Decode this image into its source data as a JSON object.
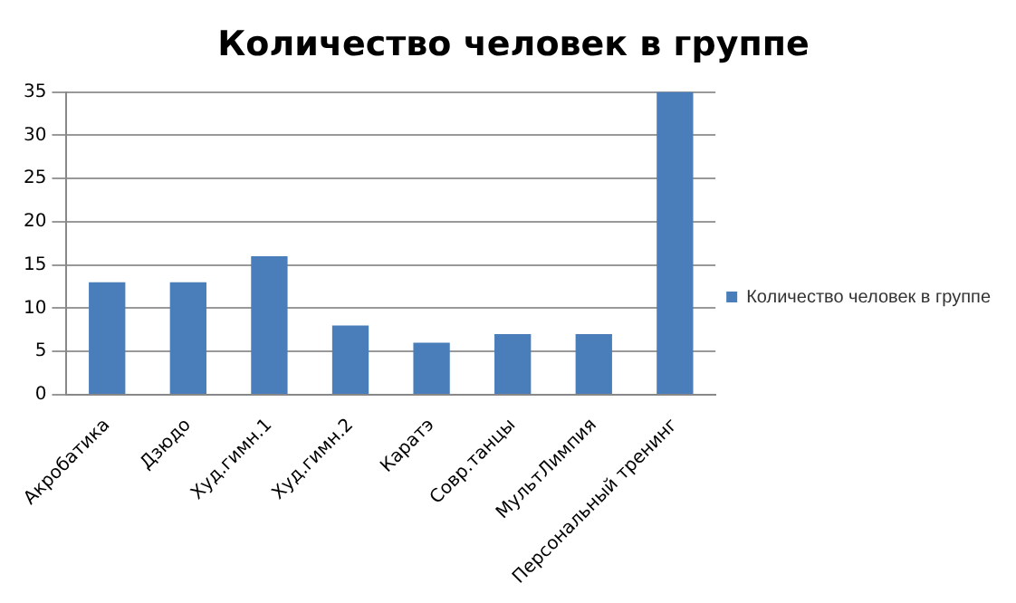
{
  "chart_data": {
    "type": "bar",
    "title": "Количество человек в группе",
    "categories": [
      "Акробатика",
      "Дзюдо",
      "Худ.гимн.1",
      "Худ.гимн.2",
      "Каратэ",
      "Совр.танцы",
      "МультЛимпия",
      "Персональный тренинг"
    ],
    "series": [
      {
        "name": "Количество человек в группе",
        "color": "#4a7ebb",
        "values": [
          13,
          13,
          16,
          8,
          6,
          7,
          7,
          35
        ]
      }
    ],
    "ylim": [
      0,
      35
    ],
    "yticks": [
      0,
      5,
      10,
      15,
      20,
      25,
      30,
      35
    ],
    "grid": "y",
    "legend": "right"
  }
}
